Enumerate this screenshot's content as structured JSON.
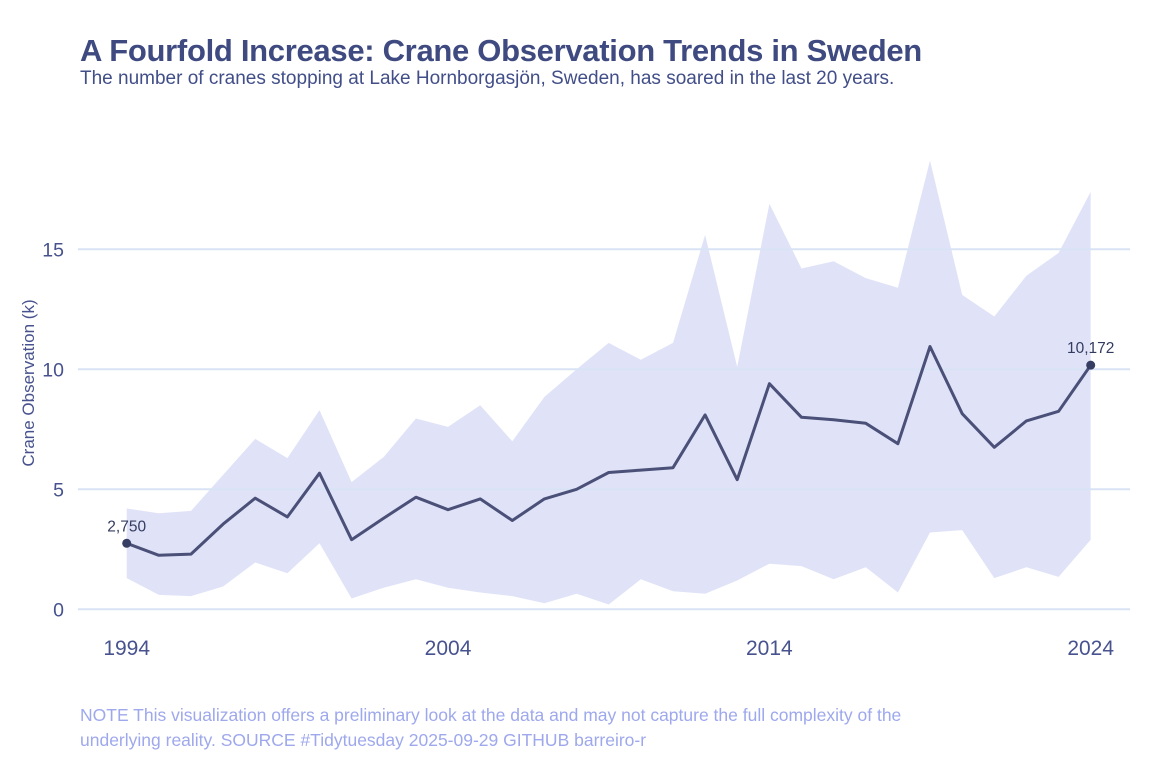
{
  "header": {
    "title": "A Fourfold Increase: Crane Observation Trends in Sweden",
    "subtitle": "The number of cranes stopping at Lake Hornborgasjön, Sweden, has soared in the last 20 years."
  },
  "chart_data": {
    "type": "line",
    "title": "A Fourfold Increase: Crane Observation Trends in Sweden",
    "xlabel": "",
    "ylabel": "Crane Observation (k)",
    "x": [
      1994,
      1995,
      1996,
      1997,
      1998,
      1999,
      2000,
      2001,
      2002,
      2003,
      2004,
      2005,
      2006,
      2007,
      2008,
      2009,
      2010,
      2011,
      2012,
      2013,
      2014,
      2015,
      2016,
      2017,
      2018,
      2019,
      2020,
      2021,
      2022,
      2023,
      2024
    ],
    "series": [
      {
        "name": "crane_observations_k",
        "values": [
          2.75,
          2.25,
          2.3,
          3.55,
          4.63,
          3.85,
          5.67,
          2.9,
          3.8,
          4.67,
          4.15,
          4.6,
          3.7,
          4.6,
          5.0,
          5.7,
          5.8,
          5.9,
          8.1,
          5.4,
          9.4,
          8.0,
          7.9,
          7.75,
          6.9,
          10.95,
          8.15,
          6.75,
          7.85,
          8.25,
          10.172
        ]
      },
      {
        "name": "band_lower_k",
        "values": [
          1.3,
          0.6,
          0.55,
          0.95,
          1.95,
          1.5,
          2.75,
          0.45,
          0.9,
          1.25,
          0.9,
          0.7,
          0.55,
          0.25,
          0.65,
          0.2,
          1.25,
          0.75,
          0.65,
          1.2,
          1.9,
          1.8,
          1.25,
          1.75,
          0.7,
          3.2,
          3.3,
          1.3,
          1.75,
          1.35,
          2.9
        ]
      },
      {
        "name": "band_upper_k",
        "values": [
          4.2,
          4.0,
          4.1,
          5.6,
          7.1,
          6.3,
          8.3,
          5.3,
          6.35,
          7.95,
          7.6,
          8.5,
          7.0,
          8.85,
          10.0,
          11.1,
          10.4,
          11.1,
          15.6,
          10.1,
          16.9,
          14.2,
          14.5,
          13.8,
          13.4,
          18.7,
          13.1,
          12.2,
          13.9,
          14.85,
          17.4
        ]
      }
    ],
    "yticks": [
      0,
      5,
      10,
      15
    ],
    "xticks": [
      1994,
      2004,
      2014,
      2024
    ],
    "ylim": [
      0,
      19
    ],
    "grid": "horizontal",
    "legend": "none",
    "annotations": [
      {
        "year": 1994,
        "value": 2.75,
        "label": "2,750"
      },
      {
        "year": 2024,
        "value": 10.172,
        "label": "10,172"
      }
    ],
    "colors": {
      "line": "#4a5077",
      "band": "#e0e3f8",
      "grid": "#d9e3f6",
      "dot": "#363e63",
      "title": "#3e4a80",
      "subtitle": "#414e88",
      "axis_text": "#47528e",
      "annotation_text": "#333c60",
      "footer_text": "#9ea8ec"
    }
  },
  "footer": {
    "line1": "NOTE This visualization offers a preliminary look at the data and may not capture the full complexity of the",
    "line2": "underlying reality. SOURCE #Tidytuesday 2025-09-29 GITHUB barreiro-r"
  }
}
